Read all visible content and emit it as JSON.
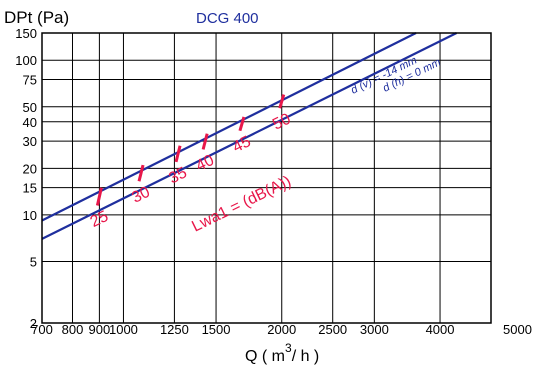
{
  "chart_data": {
    "type": "line",
    "title": "DCG 400",
    "ylabel": "DPt (Pa)",
    "xlabel": "Q ( m³/ h )",
    "xlabel_parts": {
      "pre": "Q ( m",
      "sup": "3",
      "post": "/ h )"
    },
    "xscale": "log",
    "yscale": "log",
    "xlim": [
      700,
      5000
    ],
    "ylim": [
      2,
      150
    ],
    "x_ticks": [
      700,
      800,
      900,
      1000,
      1250,
      1500,
      2000,
      2500,
      3000,
      4000,
      5000
    ],
    "x_tick_labels": [
      "700",
      "800",
      "900",
      "1000",
      "1250",
      "1500",
      "2000",
      "2500",
      "3000",
      "4000",
      "5000"
    ],
    "y_ticks": [
      2,
      5,
      10,
      15,
      20,
      30,
      40,
      50,
      75,
      100,
      150
    ],
    "y_tick_labels": [
      "2",
      "5",
      "10",
      "15",
      "20",
      "30",
      "40",
      "50",
      "75",
      "100",
      "150"
    ],
    "grid": true,
    "series": [
      {
        "name": "d (v) = -14 mm",
        "color": "#1f2f9e",
        "x": [
          700,
          3600
        ],
        "y": [
          9.2,
          150
        ]
      },
      {
        "name": "d (h) = 0 mm",
        "color": "#1f2f9e",
        "x": [
          700,
          4300
        ],
        "y": [
          7.0,
          150
        ]
      }
    ],
    "noise_label": "Lwa1 = (dB(A))",
    "noise_marks": [
      {
        "label": "25",
        "x": 900,
        "y_low": 11.5,
        "y_high": 15.0
      },
      {
        "label": "30",
        "x": 1080,
        "y_low": 16.5,
        "y_high": 21.0
      },
      {
        "label": "35",
        "x": 1270,
        "y_low": 22.0,
        "y_high": 28.0
      },
      {
        "label": "40",
        "x": 1430,
        "y_low": 26.5,
        "y_high": 33.5
      },
      {
        "label": "45",
        "x": 1680,
        "y_low": 35.0,
        "y_high": 43.0
      },
      {
        "label": "50",
        "x": 2000,
        "y_low": 49.0,
        "y_high": 60.0
      }
    ],
    "colors": {
      "curve": "#1f2f9e",
      "noise": "#e8174a",
      "grid": "#000000"
    }
  }
}
